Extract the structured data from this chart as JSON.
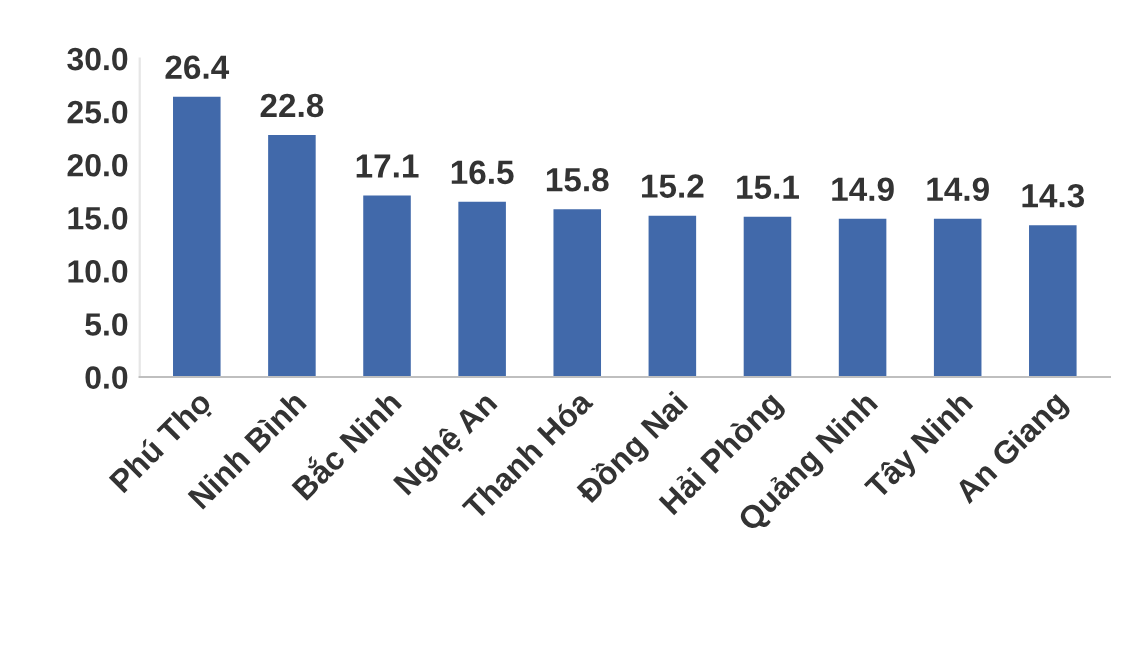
{
  "chart_data": {
    "type": "bar",
    "categories": [
      "Phú Thọ",
      "Ninh Bình",
      "Bắc Ninh",
      "Nghệ An",
      "Thanh Hóa",
      "Đồng Nai",
      "Hải Phòng",
      "Quảng Ninh",
      "Tây Ninh",
      "An Giang"
    ],
    "values": [
      26.4,
      22.8,
      17.1,
      16.5,
      15.8,
      15.2,
      15.1,
      14.9,
      14.9,
      14.3
    ],
    "color": "#4169aa",
    "ylim": [
      0,
      30
    ],
    "yticks": [
      {
        "value": 0,
        "label": "0.0"
      },
      {
        "value": 5,
        "label": "5.0"
      },
      {
        "value": 10,
        "label": "10.0"
      },
      {
        "value": 15,
        "label": "15.0"
      },
      {
        "value": 20,
        "label": "20.0"
      },
      {
        "value": 25,
        "label": "25.0"
      },
      {
        "value": 30,
        "label": "30.0"
      }
    ],
    "data_labels": true,
    "grid": false,
    "legend": false
  }
}
